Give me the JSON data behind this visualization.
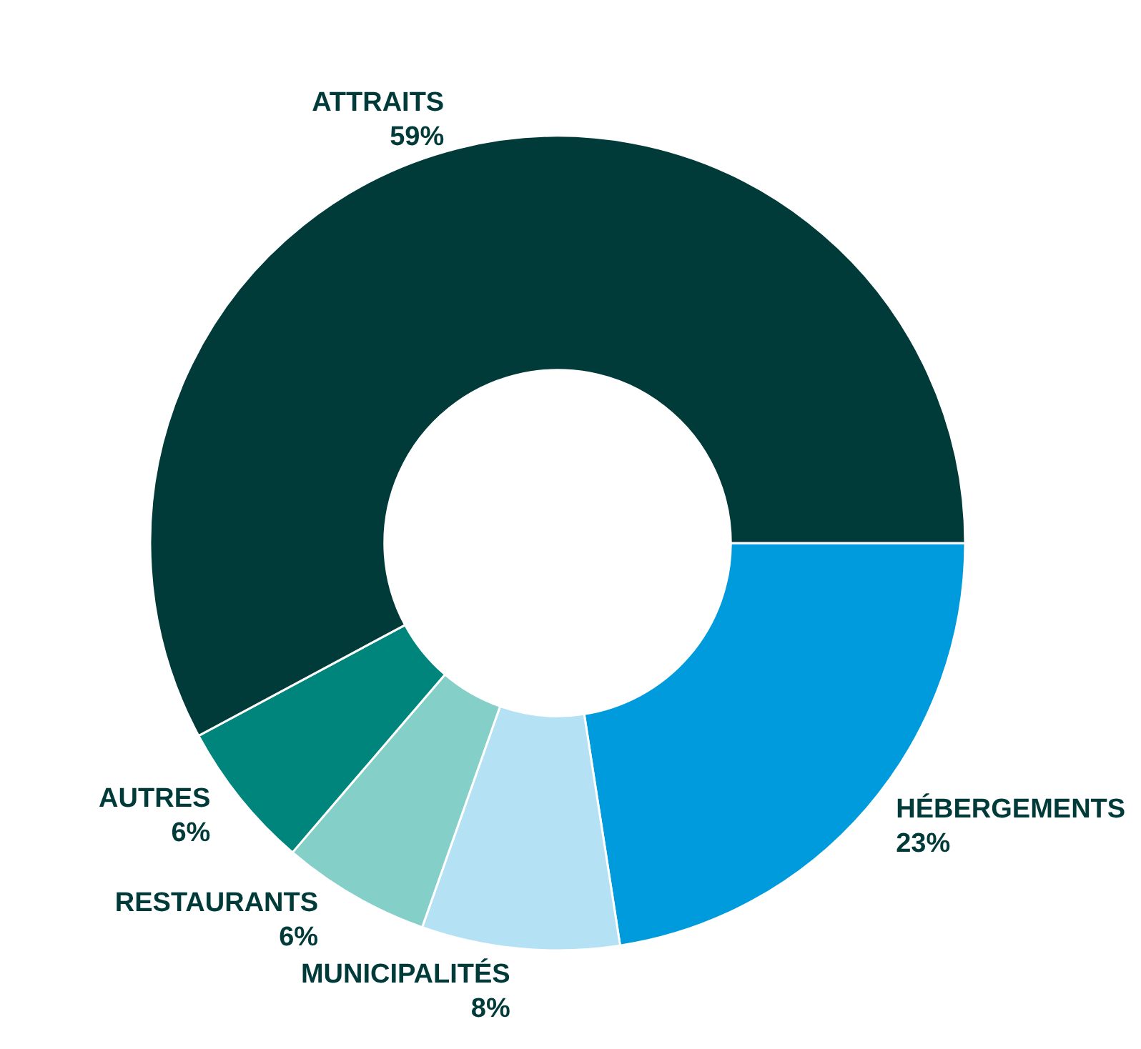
{
  "chart_data": {
    "type": "donut",
    "categories": [
      "HÉBERGEMENTS",
      "MUNICIPALITÉS",
      "RESTAURANTS",
      "AUTRES",
      "ATTRAITS"
    ],
    "values": [
      23,
      8,
      6,
      6,
      59
    ],
    "value_labels": [
      "23%",
      "8%",
      "6%",
      "6%",
      "59%"
    ],
    "colors": [
      "#009bdc",
      "#b5e1f5",
      "#85cfc9",
      "#00857d",
      "#003b3a"
    ],
    "legend": false
  }
}
